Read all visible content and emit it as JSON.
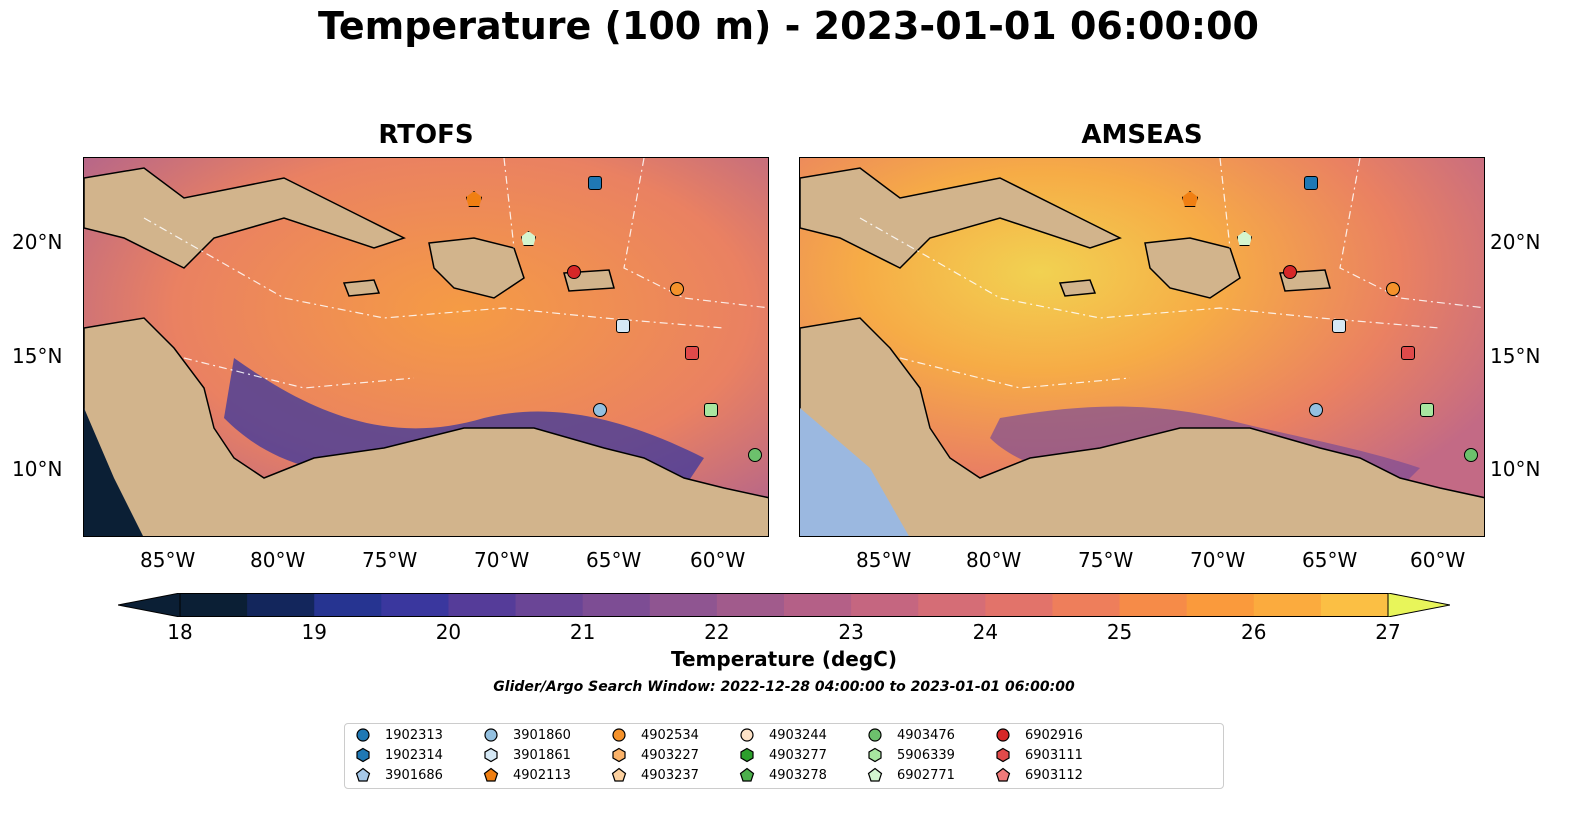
{
  "title": "Temperature (100 m) - 2023-01-01 06:00:00",
  "panels": [
    {
      "title": "RTOFS"
    },
    {
      "title": "AMSEAS"
    }
  ],
  "axes": {
    "lat_labels": [
      "20°N",
      "15°N",
      "10°N"
    ],
    "lon_labels": [
      "85°W",
      "80°W",
      "75°W",
      "70°W",
      "65°W",
      "60°W"
    ]
  },
  "colorbar": {
    "label": "Temperature (degC)",
    "ticks": [
      "18",
      "19",
      "20",
      "21",
      "22",
      "23",
      "24",
      "25",
      "26",
      "27"
    ],
    "range": [
      18,
      27
    ],
    "colors": [
      "#0b1f35",
      "#13265c",
      "#263491",
      "#3a379e",
      "#553c99",
      "#6a4596",
      "#7d4d94",
      "#8f5591",
      "#a15b8c",
      "#b46087",
      "#c56680",
      "#d56d76",
      "#e2736a",
      "#ee7e5b",
      "#f68b48",
      "#fa9a3c",
      "#fbab3e",
      "#fbbf44",
      "#f6d34a"
    ]
  },
  "search_window": "Glider/Argo Search Window: 2022-12-28 04:00:00 to 2023-01-01 06:00:00",
  "legend": [
    {
      "id": "1902313",
      "marker": "circle",
      "color": "#1f78b4"
    },
    {
      "id": "1902314",
      "marker": "hexagon",
      "color": "#1f78b4"
    },
    {
      "id": "3901686",
      "marker": "pentagon",
      "color": "#a6c8e8"
    },
    {
      "id": "3901860",
      "marker": "circle",
      "color": "#93c0e0"
    },
    {
      "id": "3901861",
      "marker": "hexagon",
      "color": "#d5e8f5"
    },
    {
      "id": "4902113",
      "marker": "pentagon",
      "color": "#f07f12"
    },
    {
      "id": "4902534",
      "marker": "circle",
      "color": "#f5922b"
    },
    {
      "id": "4903227",
      "marker": "hexagon",
      "color": "#fbb36a"
    },
    {
      "id": "4903237",
      "marker": "pentagon",
      "color": "#fcd1a0"
    },
    {
      "id": "4903244",
      "marker": "circle",
      "color": "#fde2c8"
    },
    {
      "id": "4903277",
      "marker": "hexagon",
      "color": "#2ca02c"
    },
    {
      "id": "4903278",
      "marker": "pentagon",
      "color": "#4cb04c"
    },
    {
      "id": "4903476",
      "marker": "circle",
      "color": "#6cc16c"
    },
    {
      "id": "5906339",
      "marker": "hexagon",
      "color": "#a8e6a0"
    },
    {
      "id": "6902771",
      "marker": "pentagon",
      "color": "#d4f5cf"
    },
    {
      "id": "6902916",
      "marker": "circle",
      "color": "#d62728"
    },
    {
      "id": "6903111",
      "marker": "hexagon",
      "color": "#e04a4a"
    },
    {
      "id": "6903112",
      "marker": "pentagon",
      "color": "#f07a7a"
    }
  ],
  "colors": {
    "land": "#d2b48c",
    "ocean_outside": "#9bb8e0"
  }
}
